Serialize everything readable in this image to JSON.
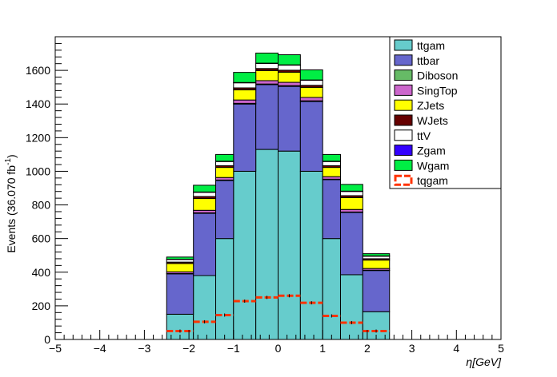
{
  "chart_data": {
    "type": "bar",
    "stacked": true,
    "bin_edges": [
      -2.5,
      -1.9,
      -1.4,
      -1.0,
      -0.5,
      0.0,
      0.5,
      1.0,
      1.4,
      1.9,
      2.5
    ],
    "xlim": [
      -5,
      5
    ],
    "ylim": [
      0,
      1800
    ],
    "xticks": [
      -5,
      -4,
      -3,
      -2,
      -1,
      0,
      1,
      2,
      3,
      4,
      5
    ],
    "yticks": [
      0,
      200,
      400,
      600,
      800,
      1000,
      1200,
      1400,
      1600
    ],
    "ylabel_main": "Events (36.070 fb",
    "ylabel_sup": "-1",
    "ylabel_close": ")",
    "xlabel_symbol": "η",
    "xlabel_unit": "[GeV]",
    "legend_position": "top-right",
    "stack_series": [
      {
        "name": "ttgam",
        "color": "#66cccc",
        "values": [
          150,
          380,
          600,
          1000,
          1130,
          1120,
          1000,
          600,
          385,
          165
        ]
      },
      {
        "name": "ttbar",
        "color": "#6666cc",
        "values": [
          240,
          370,
          345,
          400,
          385,
          385,
          415,
          350,
          370,
          245
        ]
      },
      {
        "name": "Diboson",
        "color": "#66bb66",
        "values": [
          2,
          3,
          3,
          4,
          4,
          4,
          4,
          3,
          3,
          2
        ]
      },
      {
        "name": "SingTop",
        "color": "#cc66cc",
        "values": [
          10,
          15,
          15,
          20,
          20,
          20,
          20,
          15,
          15,
          10
        ]
      },
      {
        "name": "ZJets",
        "color": "#ffff00",
        "values": [
          50,
          70,
          60,
          60,
          60,
          60,
          60,
          55,
          70,
          50
        ]
      },
      {
        "name": "WJets",
        "color": "#660000",
        "values": [
          8,
          12,
          10,
          12,
          12,
          12,
          12,
          10,
          12,
          8
        ]
      },
      {
        "name": "ttV",
        "color": "#ffffff",
        "values": [
          15,
          25,
          25,
          30,
          30,
          30,
          30,
          25,
          25,
          15
        ]
      },
      {
        "name": "Zgam",
        "color": "#3300ff",
        "values": [
          2,
          2,
          2,
          2,
          2,
          2,
          2,
          2,
          2,
          2
        ]
      },
      {
        "name": "Wgam",
        "color": "#00ee44",
        "values": [
          13,
          40,
          40,
          60,
          60,
          60,
          60,
          40,
          40,
          13
        ]
      }
    ],
    "overlay": {
      "name": "tqgam",
      "color": "#ff3300",
      "style": "dashed-line",
      "values": [
        50,
        105,
        145,
        228,
        250,
        260,
        218,
        140,
        100,
        50
      ]
    }
  }
}
